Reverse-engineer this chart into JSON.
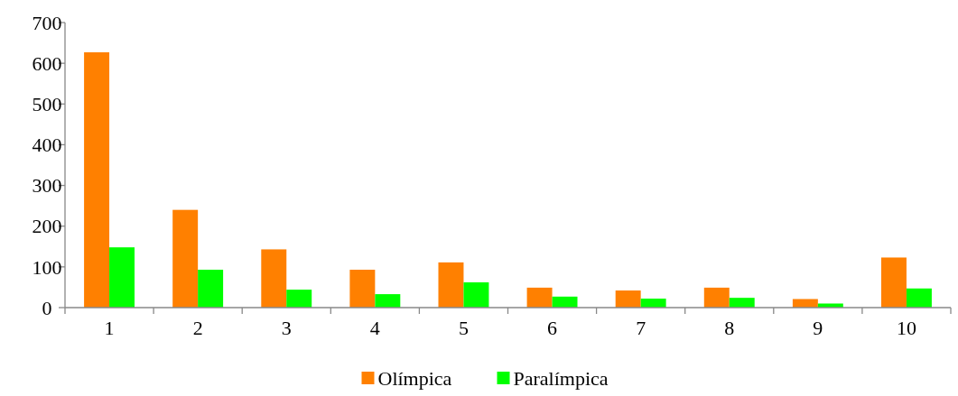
{
  "chart_data": {
    "type": "bar",
    "categories": [
      "1",
      "2",
      "3",
      "4",
      "5",
      "6",
      "7",
      "8",
      "9",
      "10"
    ],
    "series": [
      {
        "name": "Olímpica",
        "color": "#ff8000",
        "values": [
          627,
          240,
          143,
          93,
          111,
          49,
          42,
          49,
          21,
          123
        ]
      },
      {
        "name": "Paralímpica",
        "color": "#00ff00",
        "values": [
          148,
          93,
          44,
          33,
          62,
          27,
          22,
          24,
          10,
          47
        ]
      }
    ],
    "ylim": [
      0,
      700
    ],
    "yticks": [
      0,
      100,
      200,
      300,
      400,
      500,
      600,
      700
    ],
    "grid": false,
    "legend": "bottom"
  }
}
